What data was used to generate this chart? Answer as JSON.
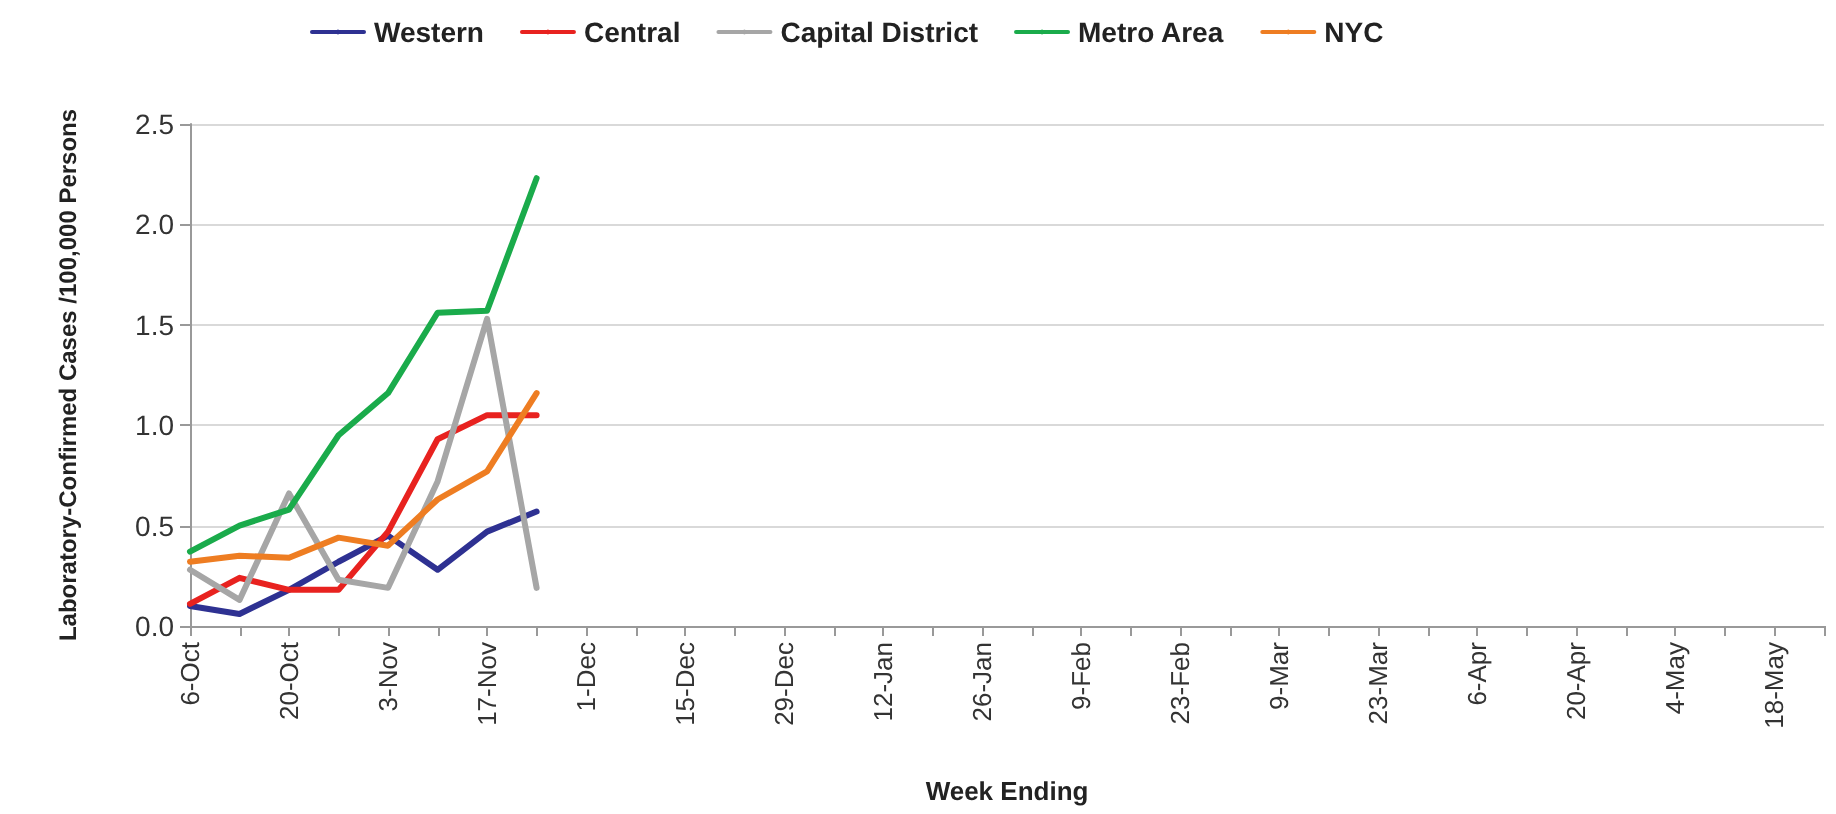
{
  "chart_data": {
    "type": "line",
    "xlabel": "Week Ending",
    "ylabel": "Laboratory-Confirmed Cases /100,000 Persons",
    "categories": [
      "6-Oct",
      null,
      "20-Oct",
      null,
      "3-Nov",
      null,
      "17-Nov",
      null,
      "1-Dec",
      null,
      "15-Dec",
      null,
      "29-Dec",
      null,
      "12-Jan",
      null,
      "26-Jan",
      null,
      "9-Feb",
      null,
      "23-Feb",
      null,
      "9-Mar",
      null,
      "23-Mar",
      null,
      "6-Apr",
      null,
      "20-Apr",
      null,
      "4-May",
      null,
      "18-May",
      null
    ],
    "series": [
      {
        "name": "Western",
        "color": "#2e3192",
        "values": [
          0.1,
          0.06,
          0.18,
          0.32,
          0.45,
          0.28,
          0.47,
          0.57,
          null,
          null,
          null,
          null,
          null,
          null,
          null,
          null,
          null,
          null,
          null,
          null,
          null,
          null,
          null,
          null,
          null,
          null,
          null,
          null,
          null,
          null,
          null,
          null,
          null,
          null
        ]
      },
      {
        "name": "Central",
        "color": "#e8221f",
        "values": [
          0.11,
          0.24,
          0.18,
          0.18,
          0.47,
          0.93,
          1.05,
          1.05,
          null,
          null,
          null,
          null,
          null,
          null,
          null,
          null,
          null,
          null,
          null,
          null,
          null,
          null,
          null,
          null,
          null,
          null,
          null,
          null,
          null,
          null,
          null,
          null,
          null,
          null
        ]
      },
      {
        "name": "Capital District",
        "color": "#a6a6a6",
        "values": [
          0.28,
          0.13,
          0.66,
          0.23,
          0.19,
          0.72,
          1.53,
          0.19,
          null,
          null,
          null,
          null,
          null,
          null,
          null,
          null,
          null,
          null,
          null,
          null,
          null,
          null,
          null,
          null,
          null,
          null,
          null,
          null,
          null,
          null,
          null,
          null,
          null,
          null
        ]
      },
      {
        "name": "Metro Area",
        "color": "#1aab4b",
        "values": [
          0.37,
          0.5,
          0.58,
          0.95,
          1.16,
          1.56,
          1.57,
          2.23,
          null,
          null,
          null,
          null,
          null,
          null,
          null,
          null,
          null,
          null,
          null,
          null,
          null,
          null,
          null,
          null,
          null,
          null,
          null,
          null,
          null,
          null,
          null,
          null,
          null,
          null
        ]
      },
      {
        "name": "NYC",
        "color": "#ee7d22",
        "values": [
          0.32,
          0.35,
          0.34,
          0.44,
          0.4,
          0.63,
          0.77,
          1.16,
          null,
          null,
          null,
          null,
          null,
          null,
          null,
          null,
          null,
          null,
          null,
          null,
          null,
          null,
          null,
          null,
          null,
          null,
          null,
          null,
          null,
          null,
          null,
          null,
          null,
          null
        ]
      }
    ],
    "ylim": [
      0,
      2.5
    ],
    "yticks": [
      {
        "value": 0,
        "label": "0.0"
      },
      {
        "value": 0.5,
        "label": "0.5"
      },
      {
        "value": 1,
        "label": "1.0"
      },
      {
        "value": 1.5,
        "label": "1.5"
      },
      {
        "value": 2,
        "label": "2.0"
      },
      {
        "value": 2.5,
        "label": "2.5"
      }
    ],
    "grid": "y",
    "legend": "top",
    "marker": "none",
    "line_style": "solid"
  }
}
